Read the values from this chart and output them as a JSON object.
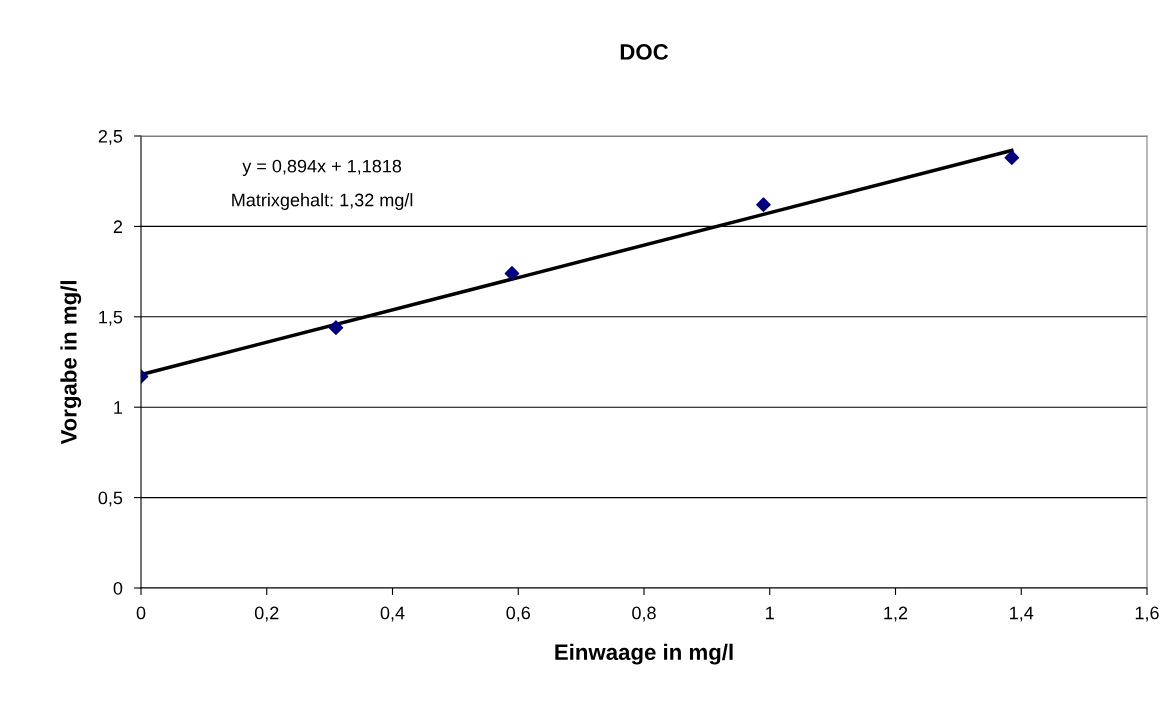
{
  "chart_data": {
    "type": "scatter",
    "title": "DOC",
    "xlabel": "Einwaage in mg/l",
    "ylabel": "Vorgabe in mg/l",
    "series": [
      {
        "color": "#000080",
        "marker": "diamond",
        "x": [
          0,
          0.31,
          0.59,
          0.99,
          1.385
        ],
        "values": [
          1.17,
          1.44,
          1.74,
          2.12,
          2.38
        ]
      },
      {
        "type": "line",
        "color": "#000000",
        "marker": "none",
        "x": [
          0,
          1.385
        ],
        "values": [
          1.18,
          2.42
        ]
      }
    ],
    "annotations": [
      "y = 0,894x + 1,1818",
      "Matrixgehalt: 1,32 mg/l"
    ],
    "xlim": [
      0,
      1.6
    ],
    "xticks": [
      {
        "value": 0,
        "label": "0"
      },
      {
        "value": 0.2,
        "label": "0,2"
      },
      {
        "value": 0.4,
        "label": "0,4"
      },
      {
        "value": 0.6,
        "label": "0,6"
      },
      {
        "value": 0.8,
        "label": "0,8"
      },
      {
        "value": 1,
        "label": "1"
      },
      {
        "value": 1.2,
        "label": "1,2"
      },
      {
        "value": 1.4,
        "label": "1,4"
      },
      {
        "value": 1.6,
        "label": "1,6"
      }
    ],
    "ylim": [
      0,
      2.5
    ],
    "yticks": [
      {
        "value": 0,
        "label": "0"
      },
      {
        "value": 0.5,
        "label": "0,5"
      },
      {
        "value": 1,
        "label": "1"
      },
      {
        "value": 1.5,
        "label": "1,5"
      },
      {
        "value": 2,
        "label": "2"
      },
      {
        "value": 2.5,
        "label": "2,5"
      }
    ],
    "grid": "y",
    "legend": false
  }
}
